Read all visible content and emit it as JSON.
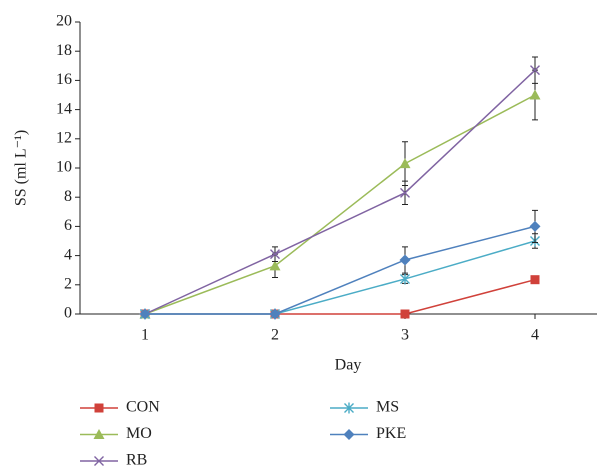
{
  "chart_data": {
    "type": "line",
    "x_label": "Day",
    "y_label": "SS (ml L⁻¹)",
    "x": [
      1,
      2,
      3,
      4
    ],
    "xlim": [
      0.5,
      4.5
    ],
    "xticks": [
      1,
      2,
      3,
      4
    ],
    "ylim": [
      0,
      20
    ],
    "yticks": [
      0,
      2,
      4,
      6,
      8,
      10,
      12,
      14,
      16,
      18,
      20
    ],
    "grid": false,
    "series": [
      {
        "name": "CON",
        "color": "#d0413a",
        "marker": "square",
        "values": [
          0,
          0,
          0,
          2.35
        ],
        "errors": [
          0,
          0,
          0,
          0.25
        ]
      },
      {
        "name": "MO",
        "color": "#9bbb59",
        "marker": "triangle",
        "values": [
          0,
          3.3,
          10.3,
          15
        ],
        "errors": [
          0,
          0.8,
          1.5,
          1.7
        ]
      },
      {
        "name": "RB",
        "color": "#8064a2",
        "marker": "x",
        "values": [
          0,
          4.1,
          8.3,
          16.7
        ],
        "errors": [
          0,
          0.5,
          0.8,
          0.9
        ]
      },
      {
        "name": "MS",
        "color": "#4bacc6",
        "marker": "asterisk",
        "values": [
          0,
          0,
          2.4,
          5
        ],
        "errors": [
          0,
          0,
          0.3,
          0.5
        ]
      },
      {
        "name": "PKE",
        "color": "#4f81bd",
        "marker": "diamond",
        "values": [
          0,
          0,
          3.7,
          6
        ],
        "errors": [
          0,
          0,
          0.9,
          1.1
        ]
      }
    ]
  }
}
